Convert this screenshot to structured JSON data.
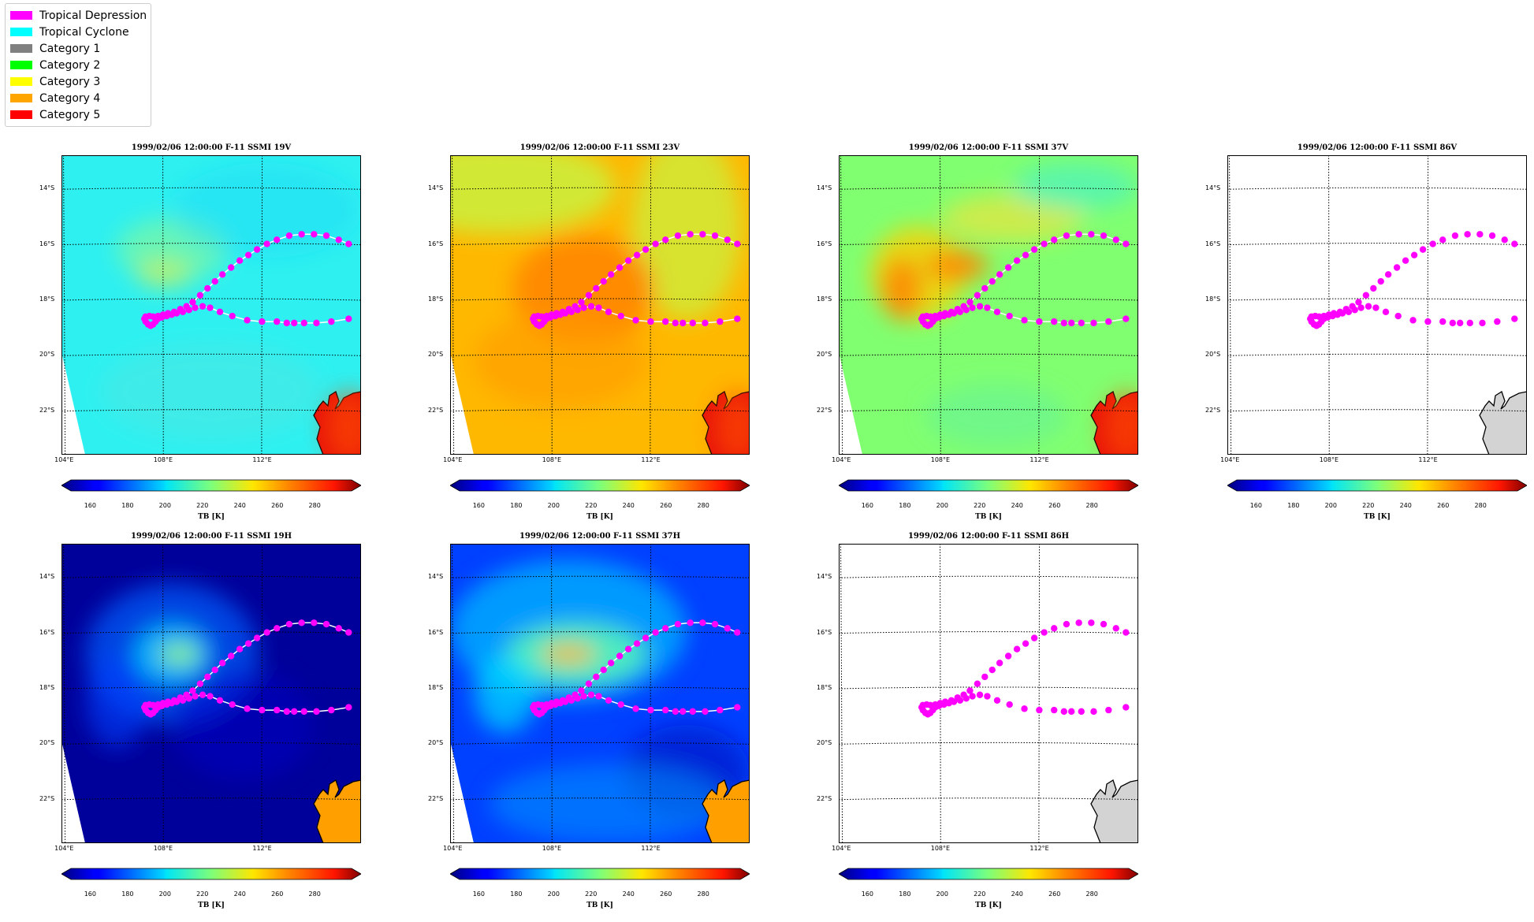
{
  "legend": {
    "items": [
      {
        "label": "Tropical Depression",
        "color": "#ff00ff"
      },
      {
        "label": "Tropical Cyclone",
        "color": "#00ffff"
      },
      {
        "label": "Category 1",
        "color": "#808080"
      },
      {
        "label": "Category 2",
        "color": "#00ff00"
      },
      {
        "label": "Category 3",
        "color": "#ffff00"
      },
      {
        "label": "Category 4",
        "color": "#ffa500"
      },
      {
        "label": "Category 5",
        "color": "#ff0000"
      }
    ]
  },
  "colorbar": {
    "label": "TB [K]",
    "ticks": [
      "160",
      "180",
      "200",
      "220",
      "240",
      "260",
      "280"
    ],
    "range": [
      150,
      300
    ],
    "colormap": "jet",
    "extend": "both"
  },
  "map": {
    "lat_ticks": [
      "14°S",
      "16°S",
      "18°S",
      "20°S",
      "22°S"
    ],
    "lon_ticks": [
      "104°E",
      "108°E",
      "112°E"
    ]
  },
  "chart_data": [
    {
      "type": "heatmap",
      "title": "1999/02/06 12:00:00  F-11 SSMI 19V",
      "background": "cyan",
      "land": "red"
    },
    {
      "type": "heatmap",
      "title": "1999/02/06 12:00:00  F-11 SSMI 23V",
      "background": "orange",
      "land": "red"
    },
    {
      "type": "heatmap",
      "title": "1999/02/06 12:00:00  F-11 SSMI 37V",
      "background": "green",
      "land": "red"
    },
    {
      "type": "heatmap",
      "title": "1999/02/06 12:00:00  F-11 SSMI 86V",
      "background": "none",
      "land": "gray"
    },
    {
      "type": "heatmap",
      "title": "1999/02/06 12:00:00  F-11 SSMI 19H",
      "background": "darkblue",
      "land": "orange"
    },
    {
      "type": "heatmap",
      "title": "1999/02/06 12:00:00  F-11 SSMI 37H",
      "background": "blue",
      "land": "orange"
    },
    {
      "type": "heatmap",
      "title": "1999/02/06 12:00:00  F-11 SSMI 86H",
      "background": "none",
      "land": "gray"
    }
  ],
  "track": {
    "category": "Tropical Depression",
    "points": [
      [
        115.5,
        -18.7
      ],
      [
        114.8,
        -18.8
      ],
      [
        114.2,
        -18.85
      ],
      [
        113.7,
        -18.85
      ],
      [
        113.3,
        -18.85
      ],
      [
        113.0,
        -18.85
      ],
      [
        112.6,
        -18.8
      ],
      [
        112.0,
        -18.8
      ],
      [
        111.4,
        -18.75
      ],
      [
        110.8,
        -18.6
      ],
      [
        110.3,
        -18.45
      ],
      [
        109.9,
        -18.3
      ],
      [
        109.6,
        -18.25
      ],
      [
        109.3,
        -18.3
      ],
      [
        109.05,
        -18.38
      ],
      [
        108.8,
        -18.45
      ],
      [
        108.55,
        -18.5
      ],
      [
        108.35,
        -18.55
      ],
      [
        108.15,
        -18.6
      ],
      [
        107.95,
        -18.65
      ],
      [
        107.8,
        -18.7
      ],
      [
        107.7,
        -18.8
      ],
      [
        107.6,
        -18.9
      ],
      [
        107.5,
        -18.95
      ],
      [
        107.4,
        -18.9
      ],
      [
        107.3,
        -18.8
      ],
      [
        107.25,
        -18.7
      ],
      [
        107.3,
        -18.62
      ],
      [
        107.45,
        -18.6
      ],
      [
        107.6,
        -18.62
      ],
      [
        107.8,
        -18.6
      ],
      [
        108.0,
        -18.55
      ],
      [
        108.2,
        -18.5
      ],
      [
        108.45,
        -18.45
      ],
      [
        108.7,
        -18.35
      ],
      [
        108.95,
        -18.25
      ],
      [
        109.2,
        -18.1
      ],
      [
        109.5,
        -17.85
      ],
      [
        109.8,
        -17.6
      ],
      [
        110.1,
        -17.35
      ],
      [
        110.4,
        -17.1
      ],
      [
        110.75,
        -16.85
      ],
      [
        111.1,
        -16.6
      ],
      [
        111.45,
        -16.4
      ],
      [
        111.8,
        -16.2
      ],
      [
        112.2,
        -16.0
      ],
      [
        112.6,
        -15.85
      ],
      [
        113.1,
        -15.7
      ],
      [
        113.6,
        -15.65
      ],
      [
        114.1,
        -15.65
      ],
      [
        114.6,
        -15.7
      ],
      [
        115.1,
        -15.85
      ],
      [
        115.5,
        -16.0
      ]
    ]
  }
}
